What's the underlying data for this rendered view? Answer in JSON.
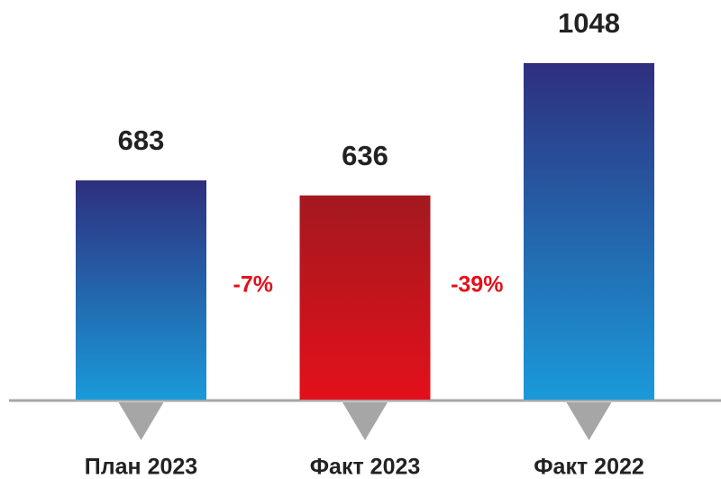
{
  "chart_data": {
    "type": "bar",
    "categories": [
      "План 2023",
      "Факт 2023",
      "Факт 2022"
    ],
    "values": [
      683,
      636,
      1048
    ],
    "colors": [
      [
        "#2e2f7e",
        "#1a9ad9"
      ],
      [
        "#a3191f",
        "#e3101a"
      ],
      [
        "#2e2f7e",
        "#1a9ad9"
      ]
    ],
    "annotations": [
      "-7%",
      "-39%"
    ],
    "annotation_color": "#e3101a"
  }
}
